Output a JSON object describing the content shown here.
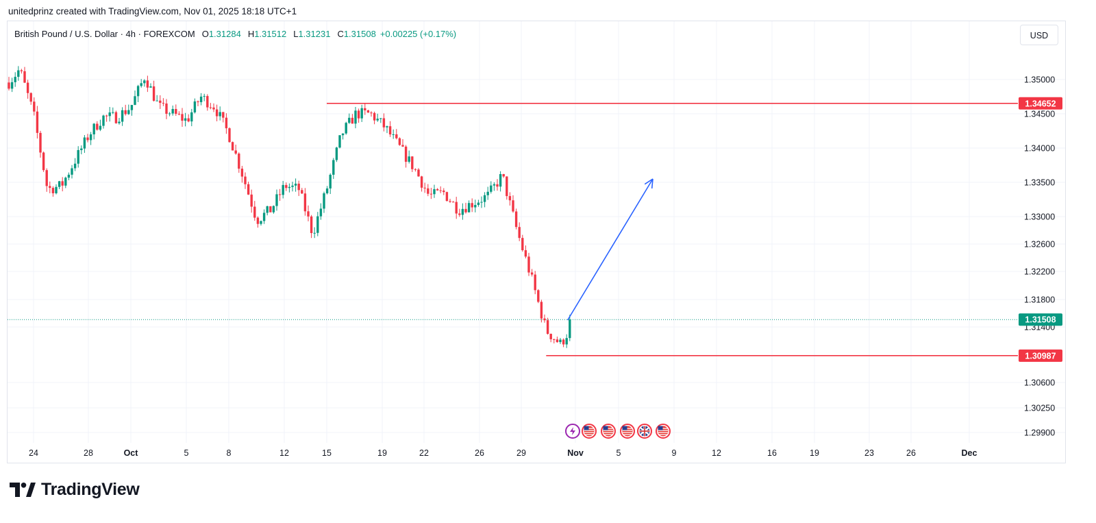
{
  "header": {
    "caption": "unitedprinz created with TradingView.com, Nov 01, 2025 18:18 UTC+1"
  },
  "legend": {
    "symbol": "British Pound / U.S. Dollar · 4h · FOREXCOM",
    "o_label": "O",
    "o_value": "1.31284",
    "h_label": "H",
    "h_value": "1.31512",
    "l_label": "L",
    "l_value": "1.31231",
    "c_label": "C",
    "c_value": "1.31508",
    "change": "+0.00225 (+0.17%)"
  },
  "currency_button": "USD",
  "logo": {
    "text": "TradingView",
    "icon": "tradingview-logo-icon"
  },
  "colors": {
    "up": "#089981",
    "down": "#f23645",
    "line": "#2962ff",
    "level": "#f23645",
    "grid": "#f0f3fa"
  },
  "event_icons": [
    "lightning-icon",
    "us-flag-icon",
    "us-flag-icon",
    "us-flag-icon",
    "uk-flag-icon",
    "us-flag-icon"
  ],
  "chart_data": {
    "type": "candlestick",
    "title": "British Pound / U.S. Dollar · 4h · FOREXCOM",
    "timeframe": "4h",
    "ylim": [
      1.2975,
      1.3565
    ],
    "y_ticks": [
      "1.35000",
      "1.34500",
      "1.34000",
      "1.33500",
      "1.33000",
      "1.32600",
      "1.32200",
      "1.31800",
      "1.31400",
      "1.30600",
      "1.30250",
      "1.29900"
    ],
    "x_ticks": [
      "24",
      "28",
      "Oct",
      "5",
      "8",
      "12",
      "15",
      "19",
      "22",
      "26",
      "29",
      "Nov",
      "5",
      "9",
      "12",
      "16",
      "19",
      "23",
      "26",
      "Dec"
    ],
    "grid": true,
    "price_labels": [
      {
        "label": "1.34652",
        "value": 1.34652,
        "kind": "level"
      },
      {
        "label": "1.31508",
        "value": 1.31508,
        "kind": "last"
      },
      {
        "label": "1.30987",
        "value": 1.30987,
        "kind": "level"
      }
    ],
    "horizontal_levels": [
      {
        "value": 1.34652,
        "from": "Oct 15",
        "to": "Dec"
      },
      {
        "value": 1.30987,
        "from": "Oct 30",
        "to": "Dec"
      }
    ],
    "projection_arrow": {
      "from": {
        "date": "Oct 31",
        "price": 1.315
      },
      "to": {
        "date": "Nov 7",
        "price": 1.3355
      }
    },
    "candle_path": [
      [
        "Sep 22",
        1.349
      ],
      [
        "Sep 23",
        1.3515
      ],
      [
        "Sep 24",
        1.345
      ],
      [
        "Sep 25",
        1.334
      ],
      [
        "Sep 26",
        1.3345
      ],
      [
        "Sep 28",
        1.342
      ],
      [
        "Sep 29",
        1.3445
      ],
      [
        "Sep 30",
        1.3445
      ],
      [
        "Oct 1",
        1.346
      ],
      [
        "Oct 2",
        1.3505
      ],
      [
        "Oct 3",
        1.346
      ],
      [
        "Oct 5",
        1.344
      ],
      [
        "Oct 6",
        1.3475
      ],
      [
        "Oct 7",
        1.346
      ],
      [
        "Oct 8",
        1.342
      ],
      [
        "Oct 9",
        1.336
      ],
      [
        "Oct 10",
        1.3295
      ],
      [
        "Oct 11",
        1.331
      ],
      [
        "Oct 12",
        1.3345
      ],
      [
        "Oct 13",
        1.334
      ],
      [
        "Oct 14",
        1.3275
      ],
      [
        "Oct 15",
        1.334
      ],
      [
        "Oct 16",
        1.342
      ],
      [
        "Oct 17",
        1.345
      ],
      [
        "Oct 18",
        1.345
      ],
      [
        "Oct 19",
        1.343
      ],
      [
        "Oct 20",
        1.34
      ],
      [
        "Oct 21",
        1.337
      ],
      [
        "Oct 22",
        1.333
      ],
      [
        "Oct 23",
        1.3335
      ],
      [
        "Oct 24",
        1.331
      ],
      [
        "Oct 26",
        1.333
      ],
      [
        "Oct 27",
        1.336
      ],
      [
        "Oct 28",
        1.328
      ],
      [
        "Oct 29",
        1.321
      ],
      [
        "Oct 30",
        1.3135
      ],
      [
        "Oct 31",
        1.3115
      ],
      [
        "Nov 1",
        1.3151
      ]
    ]
  }
}
